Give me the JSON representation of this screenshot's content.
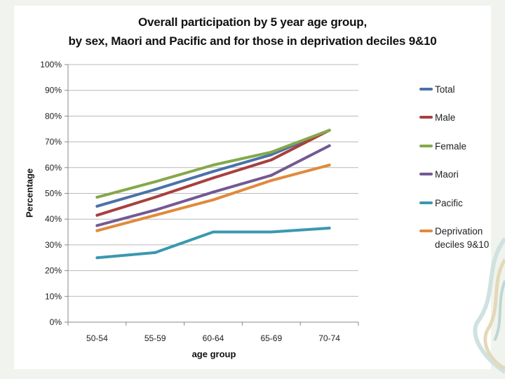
{
  "chart_data": {
    "type": "line",
    "title_line1": "Overall participation by 5 year age group,",
    "title_line2": "by sex, Maori and Pacific and for those in deprivation deciles 9&10",
    "xlabel": "age group",
    "ylabel": "Percentage",
    "categories": [
      "50-54",
      "55-59",
      "60-64",
      "65-69",
      "70-74"
    ],
    "ylim": [
      0,
      100
    ],
    "yticks": [
      0,
      10,
      20,
      30,
      40,
      50,
      60,
      70,
      80,
      90,
      100
    ],
    "ytick_labels": [
      "0%",
      "10%",
      "20%",
      "30%",
      "40%",
      "50%",
      "60%",
      "70%",
      "80%",
      "90%",
      "100%"
    ],
    "grid": true,
    "legend_position": "right",
    "series": [
      {
        "name": "Total",
        "color": "#4a72a8",
        "values": [
          45,
          51.5,
          58.5,
          65,
          74.5
        ]
      },
      {
        "name": "Male",
        "color": "#a8403e",
        "values": [
          41.5,
          48.5,
          56,
          63,
          74.5
        ]
      },
      {
        "name": "Female",
        "color": "#86a84a",
        "values": [
          48.5,
          54.5,
          61,
          66,
          74.5
        ]
      },
      {
        "name": "Maori",
        "color": "#735a92",
        "values": [
          37.5,
          43.5,
          50.5,
          57,
          68.5
        ]
      },
      {
        "name": "Pacific",
        "color": "#3a98b0",
        "values": [
          25,
          27,
          35,
          35,
          36.5
        ]
      },
      {
        "name": "Deprivation deciles 9&10",
        "color": "#e08a3c",
        "values": [
          35.5,
          41.5,
          47.5,
          55,
          61
        ]
      }
    ]
  }
}
